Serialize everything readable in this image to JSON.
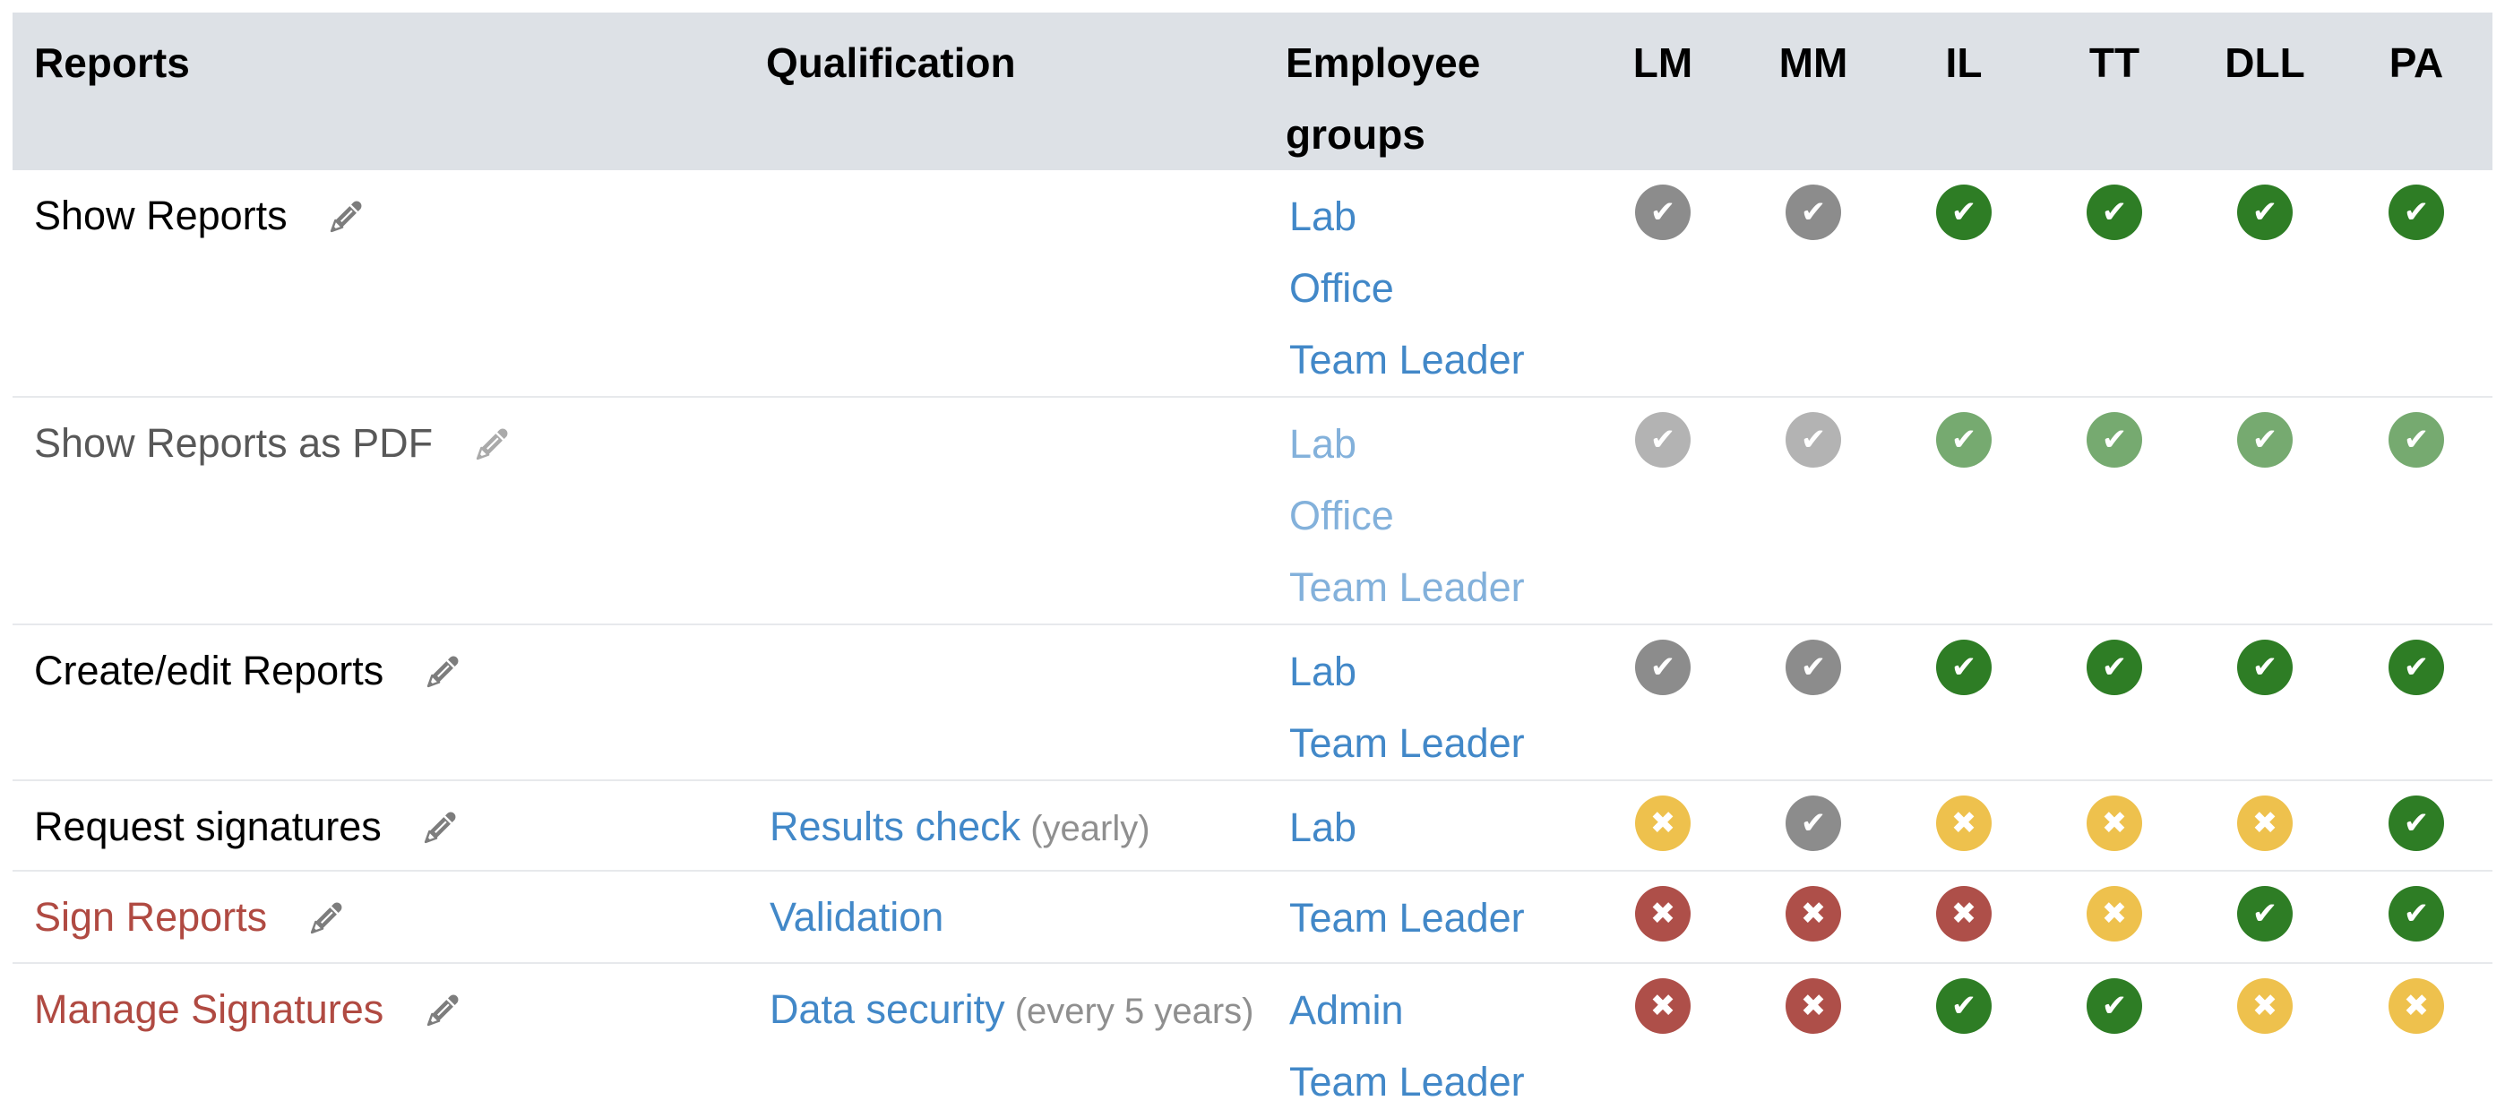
{
  "table": {
    "columns": [
      {
        "id": "reports",
        "label": "Reports"
      },
      {
        "id": "qualification",
        "label": "Qualification"
      },
      {
        "id": "groups",
        "label": "Employee groups"
      },
      {
        "id": "lm",
        "label": "LM"
      },
      {
        "id": "mm",
        "label": "MM"
      },
      {
        "id": "il",
        "label": "IL"
      },
      {
        "id": "tt",
        "label": "TT"
      },
      {
        "id": "dll",
        "label": "DLL"
      },
      {
        "id": "pa",
        "label": "PA"
      }
    ],
    "rows": [
      {
        "report": "Show Reports",
        "flagged": false,
        "muted": false,
        "qualification": null,
        "groups": [
          "Lab",
          "Office",
          "Team Leader"
        ],
        "statuses": [
          "gray-check",
          "gray-check",
          "green-check",
          "green-check",
          "green-check",
          "green-check"
        ]
      },
      {
        "report": "Show Reports as PDF",
        "flagged": false,
        "muted": true,
        "qualification": null,
        "groups": [
          "Lab",
          "Office",
          "Team Leader"
        ],
        "statuses": [
          "gray-check",
          "gray-check",
          "green-check",
          "green-check",
          "green-check",
          "green-check"
        ]
      },
      {
        "report": "Create/edit Reports",
        "flagged": false,
        "muted": false,
        "qualification": null,
        "groups": [
          "Lab",
          "Team Leader"
        ],
        "statuses": [
          "gray-check",
          "gray-check",
          "green-check",
          "green-check",
          "green-check",
          "green-check"
        ]
      },
      {
        "report": "Request signatures",
        "flagged": false,
        "muted": false,
        "qualification": {
          "link": "Results check",
          "note": "(yearly)"
        },
        "groups": [
          "Lab"
        ],
        "statuses": [
          "yellow-x",
          "gray-check",
          "yellow-x",
          "yellow-x",
          "yellow-x",
          "green-check"
        ]
      },
      {
        "report": "Sign Reports",
        "flagged": true,
        "muted": false,
        "qualification": {
          "link": "Validation",
          "note": ""
        },
        "groups": [
          "Team Leader"
        ],
        "statuses": [
          "red-x",
          "red-x",
          "red-x",
          "yellow-x",
          "green-check",
          "green-check"
        ]
      },
      {
        "report": "Manage Signatures",
        "flagged": true,
        "muted": false,
        "qualification": {
          "link": "Data security",
          "note": "(every 5 years)"
        },
        "groups": [
          "Admin",
          "Team Leader"
        ],
        "statuses": [
          "red-x",
          "red-x",
          "green-check",
          "green-check",
          "yellow-x",
          "yellow-x"
        ]
      }
    ]
  },
  "icons": {
    "edit": "pencil-icon",
    "check_glyph": "✔",
    "cross_glyph": "✖"
  },
  "colors": {
    "header_bg": "#dde1e6",
    "link": "#4288c8",
    "flagged_report": "#b04a42",
    "note_text": "#8f8f8f",
    "pencil": "#7d7d7d",
    "status": {
      "gray-check": "#8c8c8c",
      "green-check": "#2e7d25",
      "yellow-x": "#eec14d",
      "red-x": "#ae4f49"
    }
  }
}
